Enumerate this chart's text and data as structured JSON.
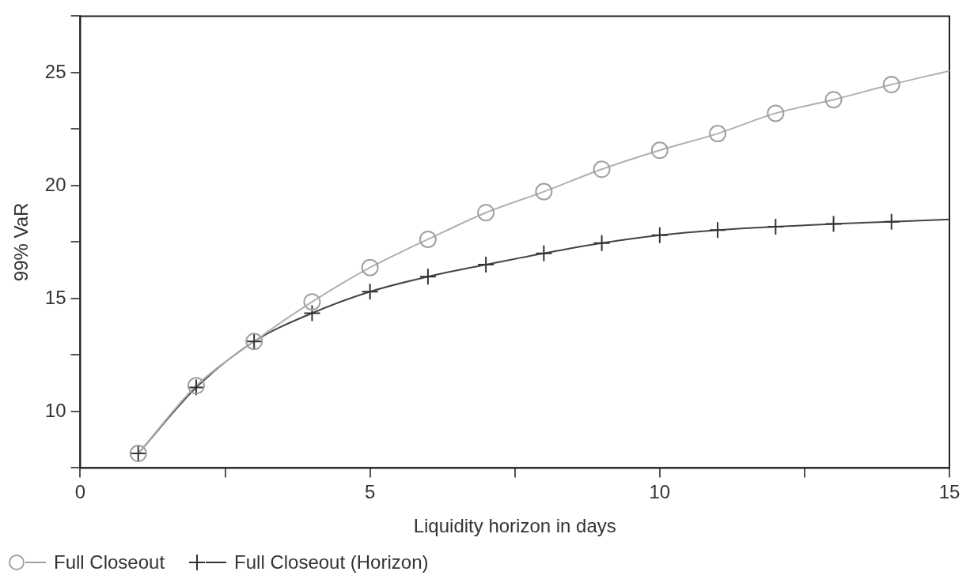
{
  "chart_data": {
    "type": "line",
    "xlabel": "Liquidity horizon in days",
    "ylabel": "99% VaR",
    "xlim": [
      0,
      15
    ],
    "xticks": [
      0,
      {
        "value": 2.5,
        "label": null
      },
      5,
      {
        "value": 7.5,
        "label": null
      },
      10,
      {
        "value": 12.5,
        "label": null
      },
      15
    ],
    "ylim": [
      7.5,
      27.5
    ],
    "yticks": [
      {
        "value": 7.5,
        "label": null
      },
      10,
      {
        "value": 12.5,
        "label": null
      },
      15,
      {
        "value": 17.5,
        "label": null
      },
      20,
      {
        "value": 22.5,
        "label": null
      },
      25,
      {
        "value": 27.5,
        "label": null
      }
    ],
    "grid": false,
    "legend": "bottom left",
    "line_style": "solid",
    "series": [
      {
        "type": "line",
        "marker": "none",
        "color": "#b0b0b0",
        "x": [
          1,
          2,
          3,
          4,
          5,
          6,
          7,
          8,
          9,
          10,
          11,
          12,
          13,
          14,
          15
        ],
        "values": [
          8.14,
          11.14,
          13.1,
          14.85,
          16.37,
          17.62,
          18.8,
          19.73,
          20.72,
          21.56,
          22.3,
          23.2,
          23.8,
          24.47,
          25.08
        ]
      },
      {
        "type": "line",
        "marker": "none",
        "color": "#444444",
        "x": [
          1,
          2,
          3,
          4,
          5,
          6,
          7,
          8,
          9,
          10,
          11,
          12,
          13,
          14,
          15
        ],
        "values": [
          8.14,
          11.06,
          13.1,
          14.35,
          15.3,
          15.97,
          16.5,
          17.0,
          17.45,
          17.8,
          18.03,
          18.18,
          18.3,
          18.4,
          18.5
        ]
      },
      {
        "type": "scatter",
        "name": "Full Closeout",
        "marker": "circle",
        "color": "#a0a0a0",
        "x": [
          1,
          2,
          3,
          4,
          5,
          6,
          7,
          8,
          9,
          10,
          11,
          12,
          13,
          14
        ],
        "values": [
          8.14,
          11.14,
          13.1,
          14.85,
          16.37,
          17.62,
          18.8,
          19.73,
          20.72,
          21.56,
          22.3,
          23.2,
          23.8,
          24.47
        ]
      },
      {
        "type": "scatter",
        "name": "Full Closeout (Horizon)",
        "marker": "cross",
        "color": "#333333",
        "x": [
          1,
          2,
          3,
          4,
          5,
          6,
          7,
          8,
          9,
          10,
          11,
          12,
          13,
          14
        ],
        "values": [
          8.14,
          11.06,
          13.1,
          14.35,
          15.3,
          15.97,
          16.5,
          17.0,
          17.45,
          17.8,
          18.03,
          18.18,
          18.3,
          18.4
        ]
      }
    ]
  }
}
